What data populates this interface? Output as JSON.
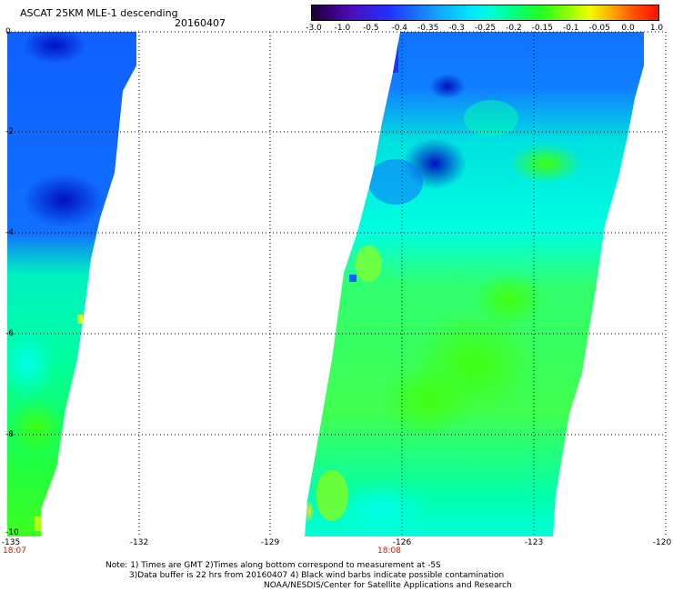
{
  "header": {
    "title": "ASCAT 25KM MLE-1 descending",
    "date": "20160407"
  },
  "colorbar": {
    "labels": [
      "-3.0",
      "-1.0",
      "-0.5",
      "-0.4",
      "-0.35",
      "-0.3",
      "-0.25",
      "-0.2",
      "-0.15",
      "-0.1",
      "-0.05",
      "0.0",
      "1.0"
    ],
    "colors": [
      "#2a003a",
      "#5a00a8",
      "#2020ff",
      "#0050ff",
      "#1090ff",
      "#00d8ff",
      "#00ffe0",
      "#00ff90",
      "#20ff20",
      "#90ff00",
      "#ffff00",
      "#ff9000",
      "#ff2000"
    ]
  },
  "axes": {
    "x_ticks": [
      "-135",
      "-132",
      "-129",
      "-126",
      "-123",
      "-120"
    ],
    "y_ticks": [
      "0",
      "-2",
      "-4",
      "-6",
      "-8",
      "-10"
    ]
  },
  "swaths": [
    {
      "id": "left",
      "time_label": "18:07"
    },
    {
      "id": "right",
      "time_label": "18:08"
    }
  ],
  "notes": {
    "line1": "Note: 1) Times are GMT 2)Times along bottom correspond to measurement at -5S",
    "line2": "3)Data buffer is 22 hrs from 20160407 4) Black wind barbs indicate possible contamination",
    "line3": "NOAA/NESDIS/Center for Satellite Applications and Research"
  }
}
